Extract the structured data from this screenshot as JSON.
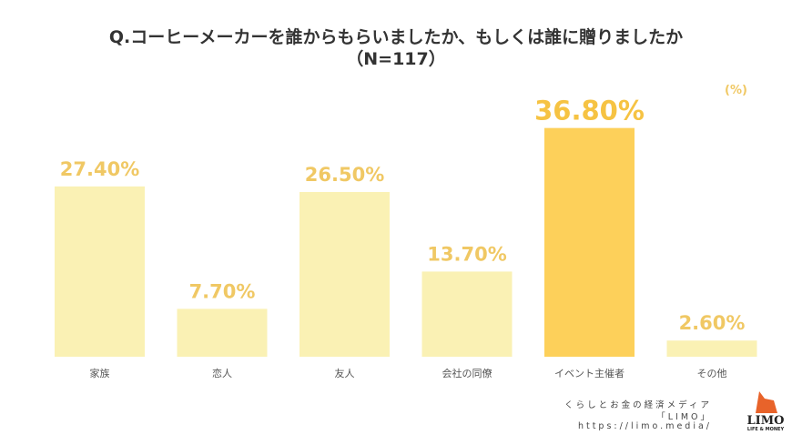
{
  "chart_data": {
    "type": "bar",
    "title": "Q.コーヒーメーカーを誰からもらいましたか、もしくは誰に贈りましたか",
    "subtitle": "（N=117）",
    "unit_label": "(%)",
    "categories": [
      "家族",
      "恋人",
      "友人",
      "会社の同僚",
      "イベント主催者",
      "その他"
    ],
    "values": [
      27.4,
      7.7,
      26.5,
      13.7,
      36.8,
      2.6
    ],
    "data_labels": [
      "27.40%",
      "7.70%",
      "26.50%",
      "13.70%",
      "36.80%",
      "2.60%"
    ],
    "highlight_index": 4,
    "grid": false,
    "colors": {
      "bar": "#faf1b4",
      "highlight": "#fdd05a",
      "label": "#f0c864",
      "highlight_label": "#f6c343"
    }
  },
  "credit": {
    "line1": "くらしとお金の経済メディア",
    "line2": "「LIMO」",
    "line3": "https://limo.media/"
  },
  "logo": {
    "name": "LIMO",
    "tagline": "LIFE & MONEY"
  }
}
